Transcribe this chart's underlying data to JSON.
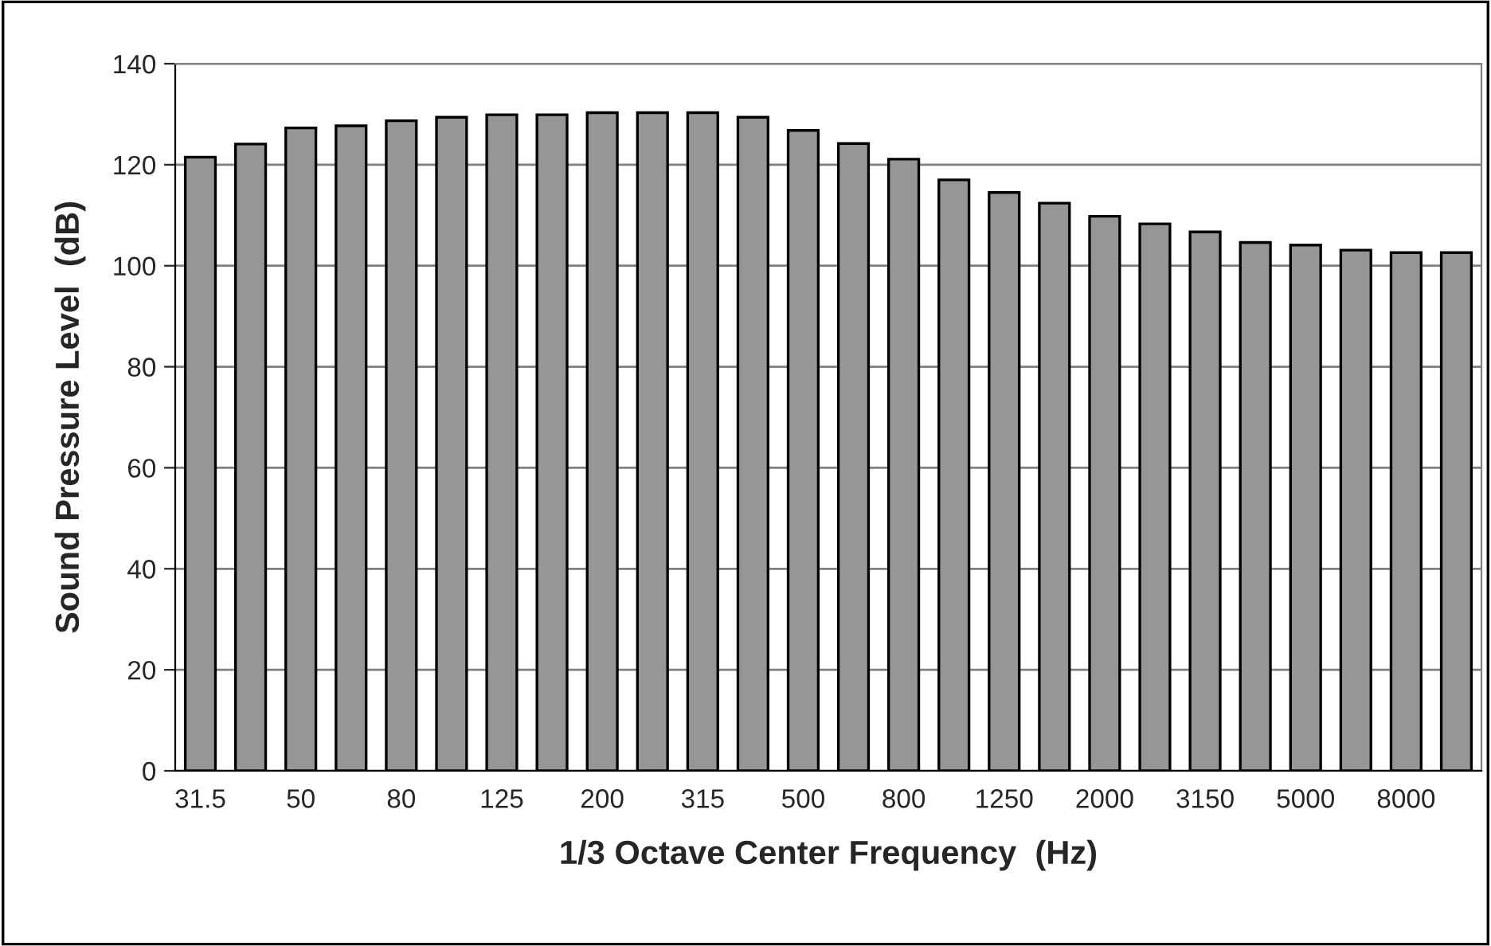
{
  "chart_data": {
    "type": "bar",
    "xlabel": "1/3 Octave Center Frequency  (Hz)",
    "ylabel": "Sound Pressure Level  (dB)",
    "categories": [
      "31.5",
      null,
      "50",
      null,
      "80",
      null,
      "125",
      null,
      "200",
      null,
      "315",
      null,
      "500",
      null,
      "800",
      null,
      "1250",
      null,
      "2000",
      null,
      "3150",
      null,
      "5000",
      null,
      "8000",
      null
    ],
    "values": [
      121.5,
      124.1,
      127.3,
      127.7,
      128.7,
      129.4,
      129.9,
      129.9,
      130.3,
      130.3,
      130.3,
      129.4,
      126.8,
      124.2,
      121.1,
      117.0,
      114.5,
      112.4,
      109.8,
      108.3,
      106.7,
      104.6,
      104.1,
      103.1,
      102.6,
      102.6
    ],
    "color": "#969696",
    "ylim": [
      0,
      140
    ],
    "yticks": [
      0,
      20,
      40,
      60,
      80,
      100,
      120,
      140
    ],
    "grid": "y",
    "legend": false
  }
}
